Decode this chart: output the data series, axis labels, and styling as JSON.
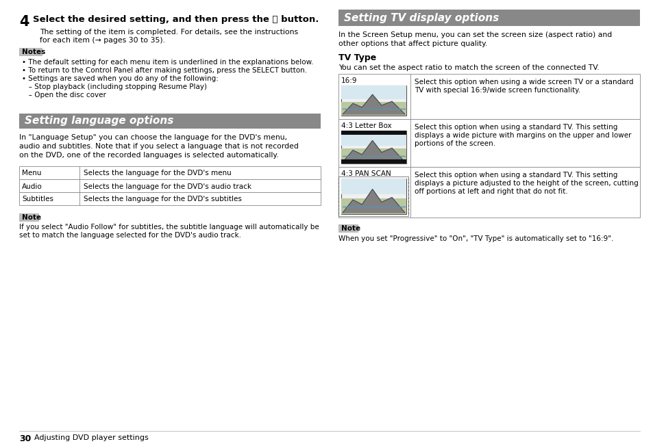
{
  "page_bg": "#ffffff",
  "header_bg": "#888888",
  "header_text_color": "#ffffff",
  "note_bg": "#bbbbbb",
  "body_text_color": "#000000",
  "step4_number": "4",
  "step4_bold": "Select the desired setting, and then press the ⓧ button.",
  "step4_body_line1": "The setting of the item is completed. For details, see the instructions",
  "step4_body_line2": "for each item (→ pages 30 to 35).",
  "notes_header": "Notes",
  "notes_bullets": [
    "• The default setting for each menu item is underlined in the explanations below.",
    "• To return to the Control Panel after making settings, press the SELECT button.",
    "• Settings are saved when you do any of the following:",
    "   – Stop playback (including stopping Resume Play)",
    "   – Open the disc cover"
  ],
  "lang_header": "Setting language options",
  "lang_body": [
    "In \"Language Setup\" you can choose the language for the DVD's menu,",
    "audio and subtitles. Note that if you select a language that is not recorded",
    "on the DVD, one of the recorded languages is selected automatically."
  ],
  "lang_table_rows": [
    [
      "Menu",
      "Selects the language for the DVD's menu"
    ],
    [
      "Audio",
      "Selects the language for the DVD's audio track"
    ],
    [
      "Subtitles",
      "Selects the language for the DVD's subtitles"
    ]
  ],
  "lang_note_header": "Note",
  "lang_note_body": [
    "If you select \"Audio Follow\" for subtitles, the subtitle language will automatically be",
    "set to match the language selected for the DVD's audio track."
  ],
  "tv_header": "Setting TV display options",
  "tv_body": [
    "In the Screen Setup menu, you can set the screen size (aspect ratio) and",
    "other options that affect picture quality."
  ],
  "tv_type_header": "TV Type",
  "tv_type_body": "You can set the aspect ratio to match the screen of the connected TV.",
  "tv_table_rows": [
    {
      "label": "16:9",
      "desc": [
        "Select this option when using a wide screen TV or a standard",
        "TV with special 16:9/wide screen functionality."
      ],
      "type": "widescreen"
    },
    {
      "label": "4:3 Letter Box",
      "desc": [
        "Select this option when using a standard TV. This setting",
        "displays a wide picture with margins on the upper and lower",
        "portions of the screen."
      ],
      "type": "letterbox"
    },
    {
      "label": "4:3 PAN SCAN",
      "desc": [
        "Select this option when using a standard TV. This setting",
        "displays a picture adjusted to the height of the screen, cutting",
        "off portions at left and right that do not fit."
      ],
      "type": "panscan"
    }
  ],
  "tv_note_header": "Note",
  "tv_note_body": "When you set \"Progressive\" to \"On\", \"TV Type\" is automatically set to \"16:9\".",
  "footer_page": "30",
  "footer_text": "Adjusting DVD player settings"
}
